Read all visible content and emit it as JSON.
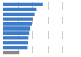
{
  "chart_data": {
    "type": "bar",
    "orientation": "horizontal",
    "categories": [
      null,
      null,
      null,
      null,
      null,
      null,
      null,
      null,
      null,
      null,
      null
    ],
    "values": [
      53,
      45,
      42,
      40,
      38,
      36,
      35,
      34,
      33,
      32,
      22
    ],
    "colors": [
      "#3d7cc9",
      "#3d7cc9",
      "#3d7cc9",
      "#3d7cc9",
      "#3d7cc9",
      "#3d7cc9",
      "#3d7cc9",
      "#3d7cc9",
      "#3d7cc9",
      "#3d7cc9",
      "#888888"
    ],
    "xlim": [
      0,
      100
    ],
    "xticks": [
      20,
      40,
      60,
      80,
      100
    ],
    "grid": true,
    "tick_labels": false
  }
}
